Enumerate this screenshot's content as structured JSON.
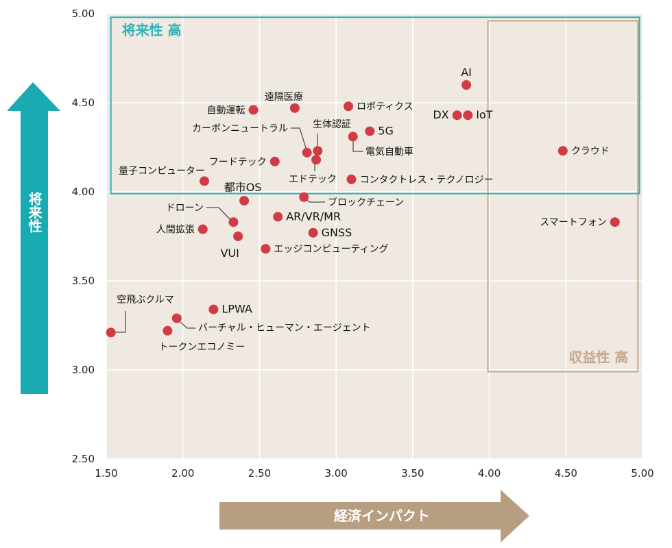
{
  "chart_data": {
    "type": "scatter",
    "xlim": [
      1.5,
      5.0
    ],
    "ylim": [
      2.5,
      5.0
    ],
    "x_ticks": [
      "1.50",
      "2.00",
      "2.50",
      "3.00",
      "3.50",
      "4.00",
      "4.50",
      "5.00"
    ],
    "y_ticks": [
      "2.50",
      "3.00",
      "3.50",
      "4.00",
      "4.50",
      "5.00"
    ],
    "xlabel": "経済インパクト",
    "ylabel": "将来性",
    "grid": true,
    "colors": {
      "plot_bg": "#efe9e2",
      "point": "#d13b45",
      "future_zone": "#2bb3b5",
      "profit_zone": "#c4a88c",
      "y_arrow": "#1aabb2",
      "x_arrow": "#b89e81"
    },
    "zones": [
      {
        "name": "future",
        "label": "将来性 高",
        "x": [
          1.53,
          4.98
        ],
        "y": [
          3.99,
          4.98
        ]
      },
      {
        "name": "profit",
        "label": "収益性 高",
        "x": [
          4.0,
          4.97
        ],
        "y": [
          2.99,
          4.96
        ]
      }
    ],
    "points": [
      {
        "label": "AI",
        "x": 3.85,
        "y": 4.6,
        "pos": "above",
        "big": true
      },
      {
        "label": "DX",
        "x": 3.79,
        "y": 4.43,
        "pos": "left",
        "big": true
      },
      {
        "label": "IoT",
        "x": 3.86,
        "y": 4.43,
        "pos": "right",
        "big": true
      },
      {
        "label": "クラウド",
        "x": 4.48,
        "y": 4.23,
        "pos": "right"
      },
      {
        "label": "スマートフォン",
        "x": 4.82,
        "y": 3.83,
        "pos": "left"
      },
      {
        "label": "遠隔医療",
        "x": 2.73,
        "y": 4.47,
        "pos": "above-left"
      },
      {
        "label": "自動運転",
        "x": 2.46,
        "y": 4.46,
        "pos": "left"
      },
      {
        "label": "ロボティクス",
        "x": 3.08,
        "y": 4.48,
        "pos": "right"
      },
      {
        "label": "5G",
        "x": 3.22,
        "y": 4.34,
        "pos": "right",
        "big": true
      },
      {
        "label": "電気自動車",
        "x": 3.11,
        "y": 4.31,
        "pos": "leader"
      },
      {
        "label": "生体認証",
        "x": 2.88,
        "y": 4.23,
        "pos": "leader"
      },
      {
        "label": "カーボンニュートラル",
        "x": 2.81,
        "y": 4.22,
        "pos": "leader"
      },
      {
        "label": "フードテック",
        "x": 2.6,
        "y": 4.17,
        "pos": "left"
      },
      {
        "label": "エドテック",
        "x": 2.87,
        "y": 4.18,
        "pos": "leader"
      },
      {
        "label": "量子コンピューター",
        "x": 2.14,
        "y": 4.06,
        "pos": "leader"
      },
      {
        "label": "コンタクトレス・テクノロジー",
        "x": 3.1,
        "y": 4.07,
        "pos": "right"
      },
      {
        "label": "都市OS",
        "x": 2.4,
        "y": 3.95,
        "pos": "above",
        "big": true
      },
      {
        "label": "ブロックチェーン",
        "x": 2.79,
        "y": 3.97,
        "pos": "leader"
      },
      {
        "label": "ドローン",
        "x": 2.33,
        "y": 3.83,
        "pos": "leader"
      },
      {
        "label": "AR/VR/MR",
        "x": 2.62,
        "y": 3.86,
        "pos": "right",
        "big": true
      },
      {
        "label": "人間拡張",
        "x": 2.13,
        "y": 3.79,
        "pos": "left"
      },
      {
        "label": "GNSS",
        "x": 2.85,
        "y": 3.77,
        "pos": "right",
        "big": true
      },
      {
        "label": "VUI",
        "x": 2.36,
        "y": 3.75,
        "pos": "below",
        "big": true
      },
      {
        "label": "エッジコンピューティング",
        "x": 2.54,
        "y": 3.68,
        "pos": "right"
      },
      {
        "label": "LPWA",
        "x": 2.2,
        "y": 3.34,
        "pos": "right",
        "big": true
      },
      {
        "label": "バーチャル・ヒューマン・エージェント",
        "x": 1.96,
        "y": 3.29,
        "pos": "leader"
      },
      {
        "label": "トークンエコノミー",
        "x": 1.9,
        "y": 3.22,
        "pos": "below"
      },
      {
        "label": "空飛ぶクルマ",
        "x": 1.53,
        "y": 3.21,
        "pos": "leader"
      }
    ]
  }
}
